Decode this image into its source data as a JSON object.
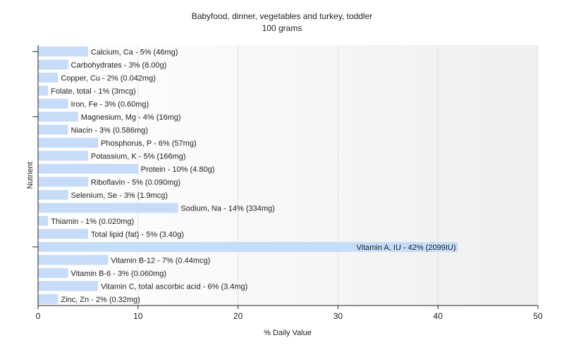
{
  "chart_data": {
    "type": "bar",
    "orientation": "horizontal",
    "title": "Babyfood, dinner, vegetables and turkey, toddler",
    "subtitle": "100 grams",
    "xlabel": "% Daily Value",
    "ylabel": "Nutrient",
    "xlim": [
      0,
      50
    ],
    "xticks": [
      0,
      10,
      20,
      30,
      40,
      50
    ],
    "grid": true,
    "bar_color": "#c6dcf8",
    "categories": [
      "Calcium, Ca",
      "Carbohydrates",
      "Copper, Cu",
      "Folate, total",
      "Iron, Fe",
      "Magnesium, Mg",
      "Niacin",
      "Phosphorus, P",
      "Potassium, K",
      "Protein",
      "Riboflavin",
      "Selenium, Se",
      "Sodium, Na",
      "Thiamin",
      "Total lipid (fat)",
      "Vitamin A, IU",
      "Vitamin B-12",
      "Vitamin B-6",
      "Vitamin C, total ascorbic acid",
      "Zinc, Zn"
    ],
    "values": [
      5,
      3,
      2,
      1,
      3,
      4,
      3,
      6,
      5,
      10,
      5,
      3,
      14,
      1,
      5,
      42,
      7,
      3,
      6,
      2
    ],
    "labels": [
      "Calcium, Ca - 5% (46mg)",
      "Carbohydrates - 3% (8.00g)",
      "Copper, Cu - 2% (0.042mg)",
      "Folate, total - 1% (3mcg)",
      "Iron, Fe - 3% (0.60mg)",
      "Magnesium, Mg - 4% (16mg)",
      "Niacin - 3% (0.586mg)",
      "Phosphorus, P - 6% (57mg)",
      "Potassium, K - 5% (166mg)",
      "Protein - 10% (4.80g)",
      "Riboflavin - 5% (0.090mg)",
      "Selenium, Se - 3% (1.9mcg)",
      "Sodium, Na - 14% (334mg)",
      "Thiamin - 1% (0.020mg)",
      "Total lipid (fat) - 5% (3.40g)",
      "Vitamin A, IU - 42% (2099IU)",
      "Vitamin B-12 - 7% (0.44mcg)",
      "Vitamin B-6 - 3% (0.060mg)",
      "Vitamin C, total ascorbic acid - 6% (3.4mg)",
      "Zinc, Zn - 2% (0.32mg)"
    ]
  }
}
